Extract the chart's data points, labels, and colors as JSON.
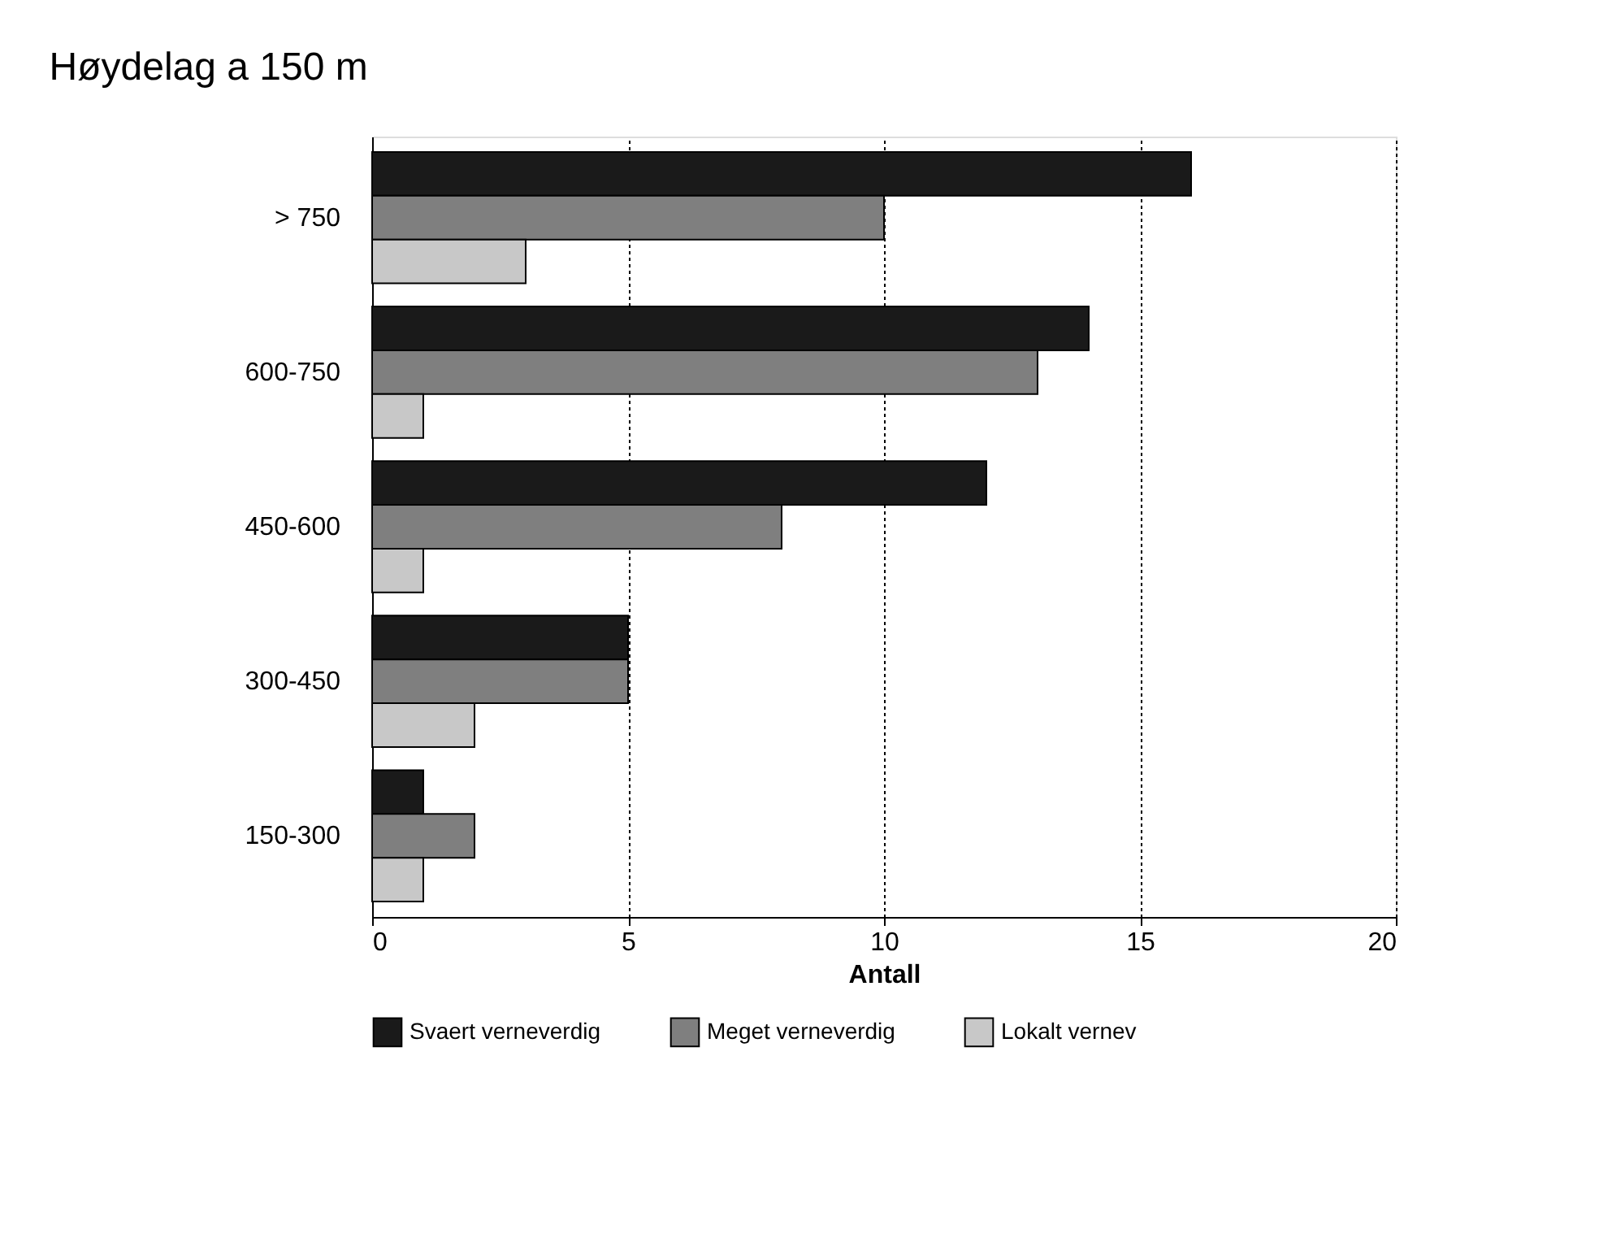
{
  "chart_data": {
    "type": "bar",
    "orientation": "horizontal",
    "title": "Høydelag a 150 m",
    "xlabel": "Antall",
    "categories": [
      "> 750",
      "600-750",
      "450-600",
      "300-450",
      "150-300"
    ],
    "series": [
      {
        "name": "Svaert verneverdig",
        "color": "#1a1a1a",
        "values": [
          16,
          14,
          12,
          5,
          1
        ]
      },
      {
        "name": "Meget verneverdig",
        "color": "#7f7f7f",
        "values": [
          10,
          13,
          8,
          5,
          2
        ]
      },
      {
        "name": "Lokalt vernev",
        "color": "#c8c8c8",
        "values": [
          3,
          1,
          1,
          2,
          1
        ]
      }
    ],
    "xlim": [
      0,
      20
    ],
    "xticks": [
      0,
      5,
      10,
      15,
      20
    ],
    "grid": "x",
    "legend": "bottom"
  }
}
